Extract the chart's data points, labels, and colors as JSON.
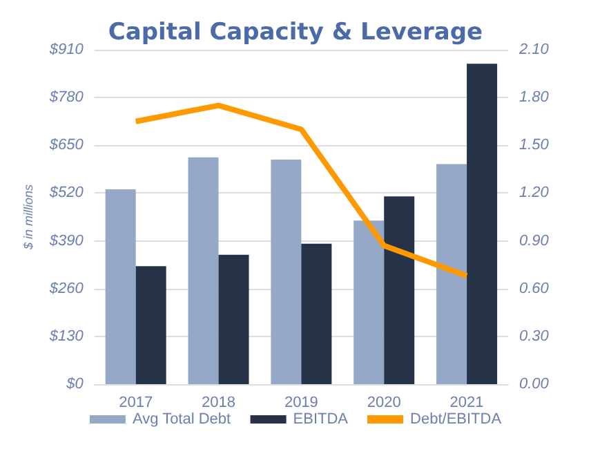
{
  "chart_data": {
    "type": "bar",
    "title": "Capital Capacity & Leverage",
    "ylabel": "$ in millions",
    "categories": [
      "2017",
      "2018",
      "2019",
      "2020",
      "2021"
    ],
    "series": [
      {
        "name": "Avg Total Debt",
        "color": "#95a8c7",
        "values": [
          530,
          617,
          611,
          445,
          599
        ]
      },
      {
        "name": "EBITDA",
        "color": "#263247",
        "values": [
          321,
          352,
          382,
          511,
          872
        ]
      },
      {
        "name": "Debt/EBITDA",
        "type": "line",
        "axis": "y2",
        "color": "#ff9900",
        "values": [
          1.65,
          1.75,
          1.6,
          0.87,
          0.68
        ]
      }
    ],
    "ylim": [
      0,
      910
    ],
    "yticks": [
      {
        "value": 0,
        "label": "$0"
      },
      {
        "value": 130,
        "label": "$130"
      },
      {
        "value": 260,
        "label": "$260"
      },
      {
        "value": 390,
        "label": "$390"
      },
      {
        "value": 520,
        "label": "$520"
      },
      {
        "value": 650,
        "label": "$650"
      },
      {
        "value": 780,
        "label": "$780"
      },
      {
        "value": 910,
        "label": "$910"
      }
    ],
    "y2lim": [
      0,
      2.1
    ],
    "y2ticks": [
      {
        "value": 0,
        "label": "0.00"
      },
      {
        "value": 0.3,
        "label": "0.30"
      },
      {
        "value": 0.6,
        "label": "0.60"
      },
      {
        "value": 0.9,
        "label": "0.90"
      },
      {
        "value": 1.2,
        "label": "1.20"
      },
      {
        "value": 1.5,
        "label": "1.50"
      },
      {
        "value": 1.8,
        "label": "1.80"
      },
      {
        "value": 2.1,
        "label": "2.10"
      }
    ],
    "grid": "y",
    "legend": "bottom",
    "marker": "none"
  }
}
